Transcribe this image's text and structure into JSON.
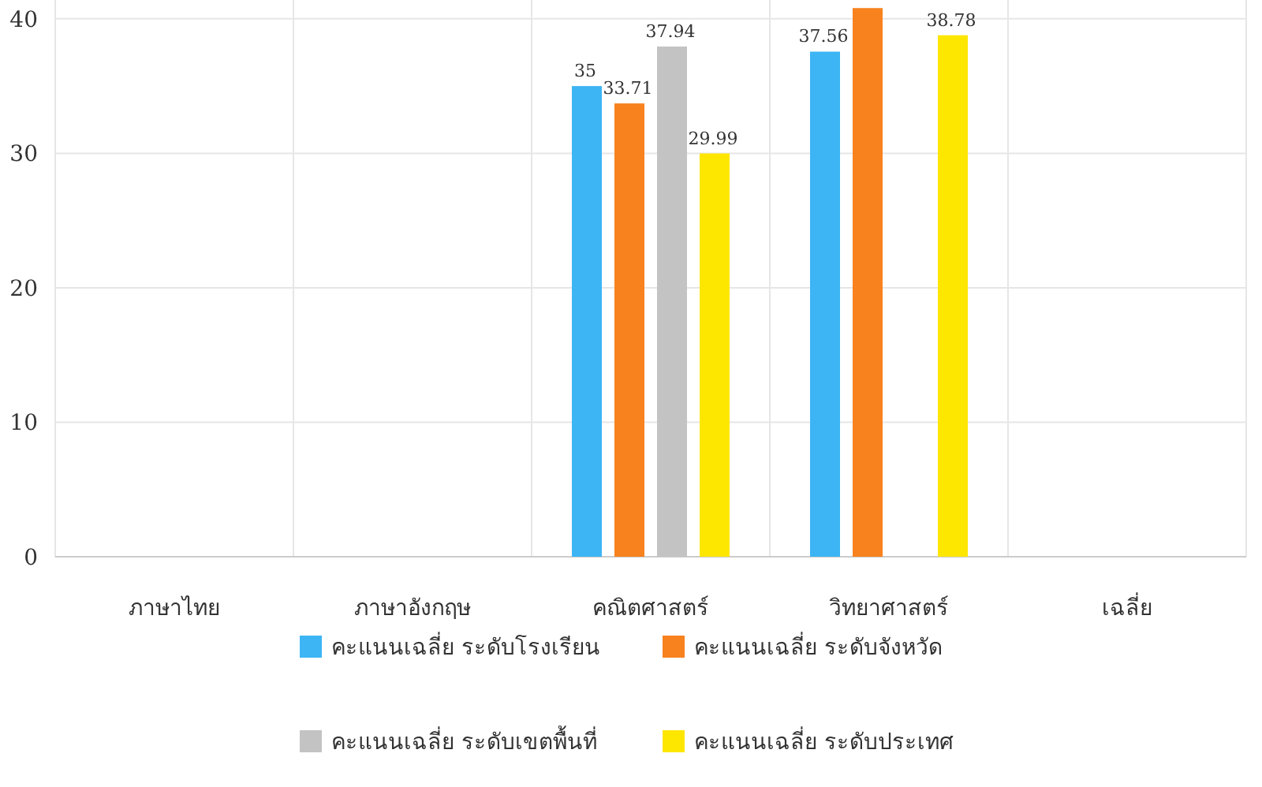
{
  "chart_data": {
    "type": "bar",
    "categories": [
      "ภาษาไทย",
      "ภาษาอังกฤษ",
      "คณิตศาสตร์",
      "วิทยาศาสตร์",
      "เฉลี่ย"
    ],
    "series": [
      {
        "name": "คะแนนเฉลี่ย ระดับโรงเรียน",
        "color": "#3db5f4",
        "values": [
          null,
          null,
          35,
          37.56,
          null
        ],
        "value_labels": [
          null,
          null,
          "35",
          "37.56",
          null
        ]
      },
      {
        "name": "คะแนนเฉลี่ย ระดับจังหวัด",
        "color": "#f7821e",
        "values": [
          null,
          null,
          33.71,
          40.8,
          null
        ],
        "value_labels": [
          null,
          null,
          "33.71",
          null,
          null
        ]
      },
      {
        "name": "คะแนนเฉลี่ย ระดับเขตพื้นที่",
        "color": "#c3c3c3",
        "values": [
          null,
          null,
          37.94,
          null,
          null
        ],
        "value_labels": [
          null,
          null,
          "37.94",
          null,
          null
        ]
      },
      {
        "name": "คะแนนเฉลี่ย ระดับประเทศ",
        "color": "#fde600",
        "values": [
          null,
          null,
          29.99,
          38.78,
          null
        ],
        "value_labels": [
          null,
          null,
          "29.99",
          "38.78",
          null
        ]
      }
    ],
    "ylim": [
      0,
      41.4
    ],
    "yticks": [
      0,
      10,
      20,
      30,
      40
    ],
    "grid": true,
    "legend": "bottom"
  }
}
